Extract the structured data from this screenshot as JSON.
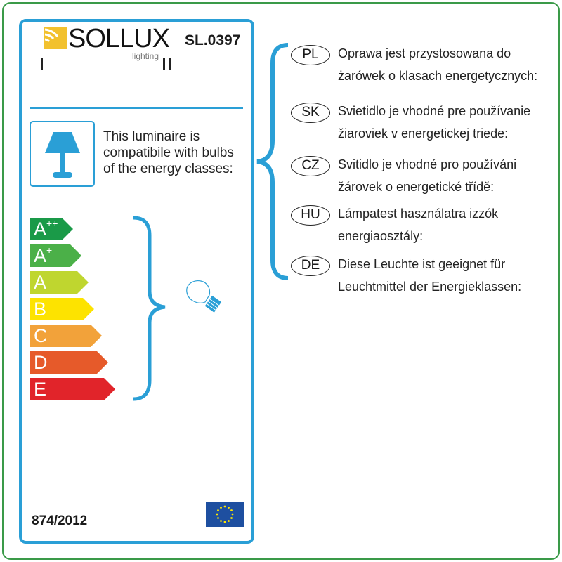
{
  "brand": {
    "name": "SOLLUX",
    "subtitle": "lighting"
  },
  "model": "SL.0397",
  "tick_marks": [
    "I",
    "II"
  ],
  "intro_text": [
    "This luminaire is",
    "compatibile with bulbs",
    "of the energy classes:"
  ],
  "energy_classes": [
    {
      "letter": "A",
      "sup": "++",
      "color": "#1a9a48"
    },
    {
      "letter": "A",
      "sup": "+",
      "color": "#4bb048"
    },
    {
      "letter": "A",
      "sup": "",
      "color": "#bfd62f"
    },
    {
      "letter": "B",
      "sup": "",
      "color": "#fde300"
    },
    {
      "letter": "C",
      "sup": "",
      "color": "#f2a23a"
    },
    {
      "letter": "D",
      "sup": "",
      "color": "#e65a2a"
    },
    {
      "letter": "E",
      "sup": "",
      "color": "#e1242a"
    }
  ],
  "regulation": "874/2012",
  "icons": {
    "lamp": "table-lamp-icon",
    "bulb": "light-bulb-icon",
    "flag": "eu-flag-icon"
  },
  "accent_color": "#2a9fd6",
  "languages": [
    {
      "code": "PL",
      "lines": [
        "Oprawa jest przystosowana do",
        "żarówek o klasach energetycznych:"
      ]
    },
    {
      "code": "SK",
      "lines": [
        "Svietidlo je vhodné pre používanie",
        "žiaroviek v energetickej triede:"
      ]
    },
    {
      "code": "CZ",
      "lines": [
        "Svitidlo je vhodné pro používáni",
        "žárovek o energetické třídě:"
      ]
    },
    {
      "code": "HU",
      "lines": [
        "Lámpatest használatra izzók",
        "energiaosztály:"
      ]
    },
    {
      "code": "DE",
      "lines": [
        "Diese Leuchte ist geeignet für",
        "Leuchtmittel der Energieklassen:"
      ]
    }
  ]
}
